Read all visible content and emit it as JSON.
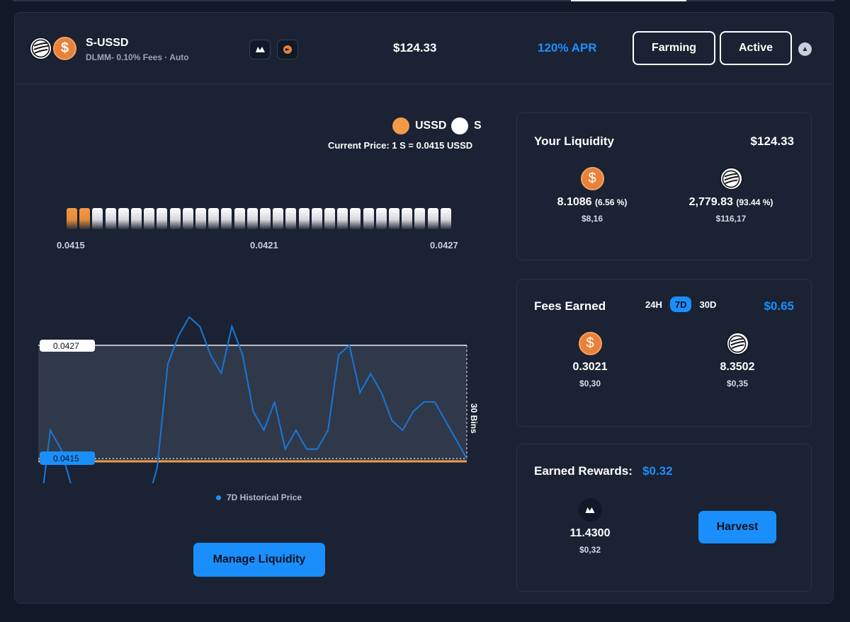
{
  "pool": {
    "name": "S-USSD",
    "subtitle": "DLMM- 0.10% Fees · Auto",
    "total_value": "$124.33",
    "apr": "120% APR",
    "farming_label": "Farming",
    "active_label": "Active"
  },
  "range": {
    "legend": [
      {
        "label": "USSD",
        "color": "#f29a4a"
      },
      {
        "label": "S",
        "color": "#ffffff"
      }
    ],
    "current_price": "Current Price: 1 S = 0.0415 USSD",
    "ticks": [
      "0.0415",
      "0.0421",
      "0.0427"
    ],
    "upper_label": "0.0427",
    "lower_label": "0.0415",
    "bins_label": "30 Bins",
    "legend_label": "7D Historical Price"
  },
  "manage_button": "Manage Liquidity",
  "liquidity": {
    "title": "Your Liquidity",
    "total": "$124.33",
    "ussd_amount": "8.1086",
    "ussd_pct": "(6.56 %)",
    "ussd_value": "$8,16",
    "s_amount": "2,779.83",
    "s_pct": "(93.44 %)",
    "s_value": "$116,17"
  },
  "fees": {
    "title": "Fees Earned",
    "periods": [
      "24H",
      "7D",
      "30D"
    ],
    "total": "$0.65",
    "ussd_amount": "0.3021",
    "ussd_value": "$0,30",
    "s_amount": "8.3502",
    "s_value": "$0,35"
  },
  "rewards": {
    "title": "Earned Rewards:",
    "total": "$0.32",
    "amount": "11.4300",
    "value": "$0,32",
    "harvest_label": "Harvest"
  },
  "chart_data": {
    "type": "line",
    "title": "",
    "xlabel": "",
    "ylabel": "",
    "series": [
      {
        "name": "7D Historical Price",
        "values": [
          0.0409,
          0.0418,
          0.0416,
          0.0412,
          0.0409,
          0.0409,
          0.0409,
          0.041,
          0.0409,
          0.0409,
          0.041,
          0.0414,
          0.0425,
          0.0428,
          0.043,
          0.0429,
          0.0426,
          0.0424,
          0.0429,
          0.0426,
          0.042,
          0.0418,
          0.0421,
          0.0416,
          0.0418,
          0.0416,
          0.0416,
          0.0418,
          0.0426,
          0.0427,
          0.0422,
          0.0424,
          0.0422,
          0.0419,
          0.0418,
          0.042,
          0.0421,
          0.0421,
          0.0419,
          0.0417,
          0.0415
        ]
      }
    ],
    "range": [
      0.0415,
      0.0427
    ]
  }
}
